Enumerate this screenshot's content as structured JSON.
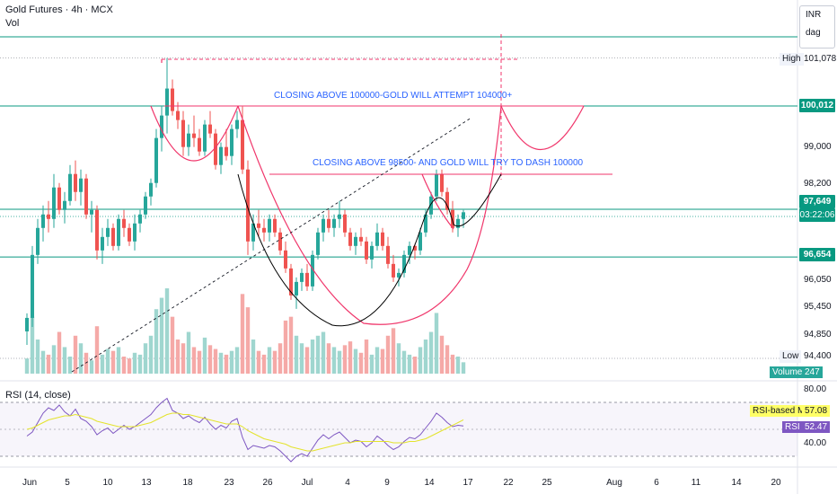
{
  "header": {
    "title": "Gold Futures · 4h · MCX",
    "volume_label": "Vol"
  },
  "currency": {
    "code": "INR",
    "unit": "dag"
  },
  "price_axis": {
    "ticks": [
      "99,000",
      "98,200",
      "96,050",
      "95,450",
      "94,850",
      "94,400"
    ],
    "high_label": "High",
    "high_value": "101,078",
    "low_label": "Low",
    "low_value": "94,400",
    "level_upper": "100,012",
    "level_current": "97,649",
    "countdown": "03:22:06",
    "level_lower": "96,654",
    "volume_label": "Volume",
    "volume_value": "247"
  },
  "annotations": {
    "upper": "CLOSING ABOVE 100000-GOLD WILL ATTEMPT 104000+",
    "lower": "CLOSING ABOVE 98500- AND GOLD WILL TRY TO DASH 100000"
  },
  "rsi": {
    "label": "RSI (14, close)",
    "ticks": [
      "80.00",
      "40.00"
    ],
    "ma_label": "RSI-based MA",
    "ma_value": "57.08",
    "rsi_label": "RSI",
    "rsi_value": "52.47"
  },
  "time_axis": [
    "Jun",
    "5",
    "10",
    "13",
    "18",
    "23",
    "26",
    "Jul",
    "4",
    "9",
    "14",
    "17",
    "22",
    "25",
    "Aug",
    "6",
    "11",
    "14",
    "20"
  ],
  "colors": {
    "up": "#26a69a",
    "down": "#ef5350",
    "level": "#089981",
    "pattern": "#f0366b",
    "annotation": "#2962ff",
    "rsi_line": "#7e57c2",
    "rsi_ma": "#e3e32b"
  },
  "chart_data": {
    "type": "candlestick",
    "symbol": "Gold Futures",
    "timeframe": "4h",
    "exchange": "MCX",
    "high": 101078,
    "low": 94400,
    "last_close": 97649,
    "levels": [
      100012,
      97649,
      96654
    ],
    "candles": [
      [
        95000,
        95400,
        94700,
        95300
      ],
      [
        95300,
        96900,
        95100,
        96700
      ],
      [
        96700,
        97500,
        96500,
        97300
      ],
      [
        97300,
        97800,
        97000,
        97600
      ],
      [
        97600,
        97900,
        97200,
        97500
      ],
      [
        97500,
        98500,
        97300,
        98200
      ],
      [
        98200,
        98300,
        97600,
        97700
      ],
      [
        97700,
        98100,
        97400,
        97900
      ],
      [
        97900,
        98700,
        97800,
        98500
      ],
      [
        98500,
        98800,
        97900,
        98100
      ],
      [
        98100,
        98600,
        97800,
        98400
      ],
      [
        98400,
        98500,
        97500,
        97600
      ],
      [
        97600,
        97900,
        97200,
        97700
      ],
      [
        97700,
        97800,
        96600,
        96800
      ],
      [
        96800,
        97300,
        96500,
        97100
      ],
      [
        97100,
        97500,
        96900,
        97300
      ],
      [
        97300,
        97400,
        96800,
        96900
      ],
      [
        96900,
        97600,
        96800,
        97500
      ],
      [
        97500,
        97700,
        97100,
        97300
      ],
      [
        97300,
        97400,
        96900,
        97000
      ],
      [
        97000,
        97600,
        96800,
        97400
      ],
      [
        97400,
        97700,
        97200,
        97600
      ],
      [
        97600,
        98100,
        97500,
        98000
      ],
      [
        98000,
        98400,
        97800,
        98300
      ],
      [
        98300,
        99500,
        98200,
        99300
      ],
      [
        99300,
        100000,
        99000,
        99800
      ],
      [
        99800,
        101078,
        99400,
        100400
      ],
      [
        100400,
        100600,
        99800,
        99900
      ],
      [
        99900,
        100100,
        99500,
        99700
      ],
      [
        99700,
        99900,
        98900,
        99100
      ],
      [
        99100,
        99600,
        98900,
        99400
      ],
      [
        99400,
        99800,
        99100,
        99300
      ],
      [
        99300,
        99500,
        98900,
        99000
      ],
      [
        99000,
        99700,
        98900,
        99600
      ],
      [
        99600,
        99900,
        99300,
        99400
      ],
      [
        99400,
        99500,
        98600,
        98700
      ],
      [
        98700,
        99200,
        98500,
        99100
      ],
      [
        99100,
        99500,
        98800,
        98900
      ],
      [
        98900,
        99600,
        98700,
        99500
      ],
      [
        99500,
        99900,
        99300,
        99700
      ],
      [
        99700,
        100000,
        98500,
        98600
      ],
      [
        98600,
        98800,
        96700,
        97000
      ],
      [
        97000,
        97600,
        96800,
        97400
      ],
      [
        97400,
        97700,
        97100,
        97300
      ],
      [
        97300,
        97500,
        97000,
        97200
      ],
      [
        97200,
        97600,
        97000,
        97500
      ],
      [
        97500,
        97600,
        97100,
        97200
      ],
      [
        97200,
        97300,
        96700,
        96800
      ],
      [
        96800,
        97000,
        96300,
        96400
      ],
      [
        96400,
        96500,
        95700,
        95800
      ],
      [
        95800,
        96200,
        95500,
        96100
      ],
      [
        96100,
        96400,
        95900,
        96300
      ],
      [
        96300,
        96500,
        95900,
        96000
      ],
      [
        96000,
        96800,
        95900,
        96700
      ],
      [
        96700,
        97300,
        96600,
        97200
      ],
      [
        97200,
        97600,
        97000,
        97500
      ],
      [
        97500,
        97700,
        97200,
        97300
      ],
      [
        97300,
        97600,
        97100,
        97500
      ],
      [
        97500,
        97900,
        97300,
        97600
      ],
      [
        97600,
        97700,
        97100,
        97200
      ],
      [
        97200,
        97300,
        96800,
        96900
      ],
      [
        96900,
        97200,
        96700,
        97100
      ],
      [
        97100,
        97300,
        96900,
        97000
      ],
      [
        97000,
        97100,
        96500,
        96600
      ],
      [
        96600,
        97000,
        96400,
        96900
      ],
      [
        96900,
        97400,
        96800,
        97200
      ],
      [
        97200,
        97300,
        96800,
        96900
      ],
      [
        96900,
        97100,
        96400,
        96500
      ],
      [
        96500,
        96700,
        96100,
        96200
      ],
      [
        96200,
        96400,
        96000,
        96300
      ],
      [
        96300,
        96800,
        96200,
        96700
      ],
      [
        96700,
        97000,
        96500,
        96900
      ],
      [
        96900,
        96950,
        96600,
        96800
      ],
      [
        96800,
        97300,
        96700,
        97200
      ],
      [
        97200,
        97700,
        97100,
        97600
      ],
      [
        97600,
        98100,
        97500,
        98000
      ],
      [
        98000,
        98600,
        97900,
        98500
      ],
      [
        98500,
        98600,
        98000,
        98100
      ],
      [
        98100,
        98200,
        97600,
        97700
      ],
      [
        97700,
        97900,
        97200,
        97300
      ],
      [
        97300,
        97600,
        97100,
        97500
      ],
      [
        97500,
        97700,
        97300,
        97649
      ]
    ],
    "volume": [
      8,
      30,
      18,
      12,
      10,
      15,
      22,
      14,
      9,
      20,
      16,
      11,
      7,
      25,
      10,
      13,
      12,
      14,
      9,
      8,
      11,
      10,
      16,
      20,
      34,
      40,
      45,
      30,
      18,
      16,
      22,
      14,
      12,
      19,
      15,
      13,
      11,
      10,
      12,
      14,
      42,
      35,
      18,
      12,
      10,
      14,
      12,
      16,
      28,
      30,
      20,
      16,
      14,
      18,
      20,
      22,
      16,
      14,
      12,
      15,
      17,
      13,
      11,
      18,
      10,
      14,
      13,
      20,
      24,
      16,
      12,
      10,
      9,
      14,
      18,
      22,
      32,
      20,
      15,
      10,
      9,
      6
    ],
    "rsi": [
      45,
      48,
      55,
      62,
      66,
      64,
      68,
      63,
      60,
      65,
      58,
      56,
      52,
      46,
      49,
      51,
      47,
      50,
      53,
      50,
      52,
      55,
      58,
      61,
      66,
      70,
      73,
      64,
      62,
      58,
      60,
      57,
      55,
      59,
      54,
      50,
      53,
      51,
      56,
      58,
      44,
      35,
      38,
      37,
      36,
      38,
      37,
      34,
      30,
      26,
      30,
      32,
      30,
      36,
      42,
      46,
      43,
      46,
      48,
      44,
      40,
      42,
      41,
      37,
      40,
      45,
      42,
      38,
      35,
      37,
      41,
      44,
      43,
      46,
      51,
      56,
      62,
      59,
      55,
      52,
      53,
      52.47
    ],
    "rsi_ma": [
      50,
      51,
      53,
      55,
      57,
      58,
      59,
      60,
      60,
      61,
      60,
      59,
      58,
      56,
      55,
      54,
      53,
      52,
      52,
      52,
      52,
      53,
      54,
      55,
      57,
      59,
      61,
      62,
      62,
      61,
      61,
      60,
      59,
      58,
      57,
      56,
      55,
      54,
      54,
      54,
      52,
      49,
      47,
      45,
      43,
      42,
      41,
      40,
      39,
      37,
      36,
      35,
      34,
      34,
      35,
      36,
      37,
      38,
      39,
      40,
      40,
      41,
      41,
      41,
      41,
      41,
      41,
      41,
      40,
      40,
      40,
      41,
      41,
      42,
      43,
      45,
      47,
      49,
      51,
      53,
      55,
      57.08
    ],
    "rsi_ylim": [
      20,
      90
    ],
    "ylim": [
      94400,
      101500
    ],
    "xlabels": [
      "Jun",
      "5",
      "10",
      "13",
      "18",
      "23",
      "26",
      "Jul",
      "4",
      "9",
      "14",
      "17",
      "22",
      "25",
      "Aug",
      "6",
      "11",
      "14",
      "20"
    ]
  }
}
